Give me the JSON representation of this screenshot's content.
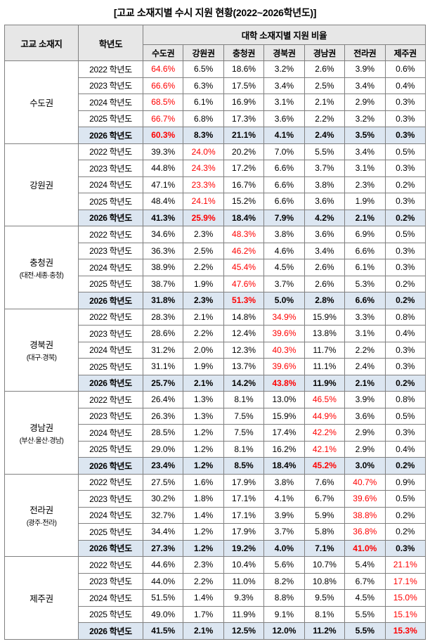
{
  "title": "[고교 소재지별 수시 지원 현황(2022~2026학년도)]",
  "colors": {
    "highlight_text": "#ff0000",
    "final_row_bg": "#dce6f1",
    "header_bg": "#e7e7e7",
    "grid_border": "#808080"
  },
  "chart_data": {
    "type": "table",
    "title": "[고교 소재지별 수시 지원 현황(2022~2026학년도)]",
    "unit": "%",
    "header": {
      "row_label_1": "고교 소재지",
      "row_label_2": "학년도",
      "group_label": "대학 소재지별 지원 비율",
      "columns": [
        "수도권",
        "강원권",
        "충청권",
        "경북권",
        "경남권",
        "전라권",
        "제주권"
      ]
    },
    "groups": [
      {
        "region": "수도권",
        "region_sub": "",
        "highlight_col": 0,
        "rows": [
          {
            "year": "2022 학년도",
            "final": false,
            "values": [
              "64.6%",
              "6.5%",
              "18.6%",
              "3.2%",
              "2.6%",
              "3.9%",
              "0.6%"
            ]
          },
          {
            "year": "2023 학년도",
            "final": false,
            "values": [
              "66.6%",
              "6.3%",
              "17.5%",
              "3.4%",
              "2.5%",
              "3.4%",
              "0.4%"
            ]
          },
          {
            "year": "2024 학년도",
            "final": false,
            "values": [
              "68.5%",
              "6.1%",
              "16.9%",
              "3.1%",
              "2.1%",
              "2.9%",
              "0.3%"
            ]
          },
          {
            "year": "2025 학년도",
            "final": false,
            "values": [
              "66.7%",
              "6.8%",
              "17.3%",
              "3.6%",
              "2.2%",
              "3.2%",
              "0.3%"
            ]
          },
          {
            "year": "2026 학년도",
            "final": true,
            "values": [
              "60.3%",
              "8.3%",
              "21.1%",
              "4.1%",
              "2.4%",
              "3.5%",
              "0.3%"
            ]
          }
        ]
      },
      {
        "region": "강원권",
        "region_sub": "",
        "highlight_col": 1,
        "rows": [
          {
            "year": "2022 학년도",
            "final": false,
            "values": [
              "39.3%",
              "24.0%",
              "20.2%",
              "7.0%",
              "5.5%",
              "3.4%",
              "0.5%"
            ]
          },
          {
            "year": "2023 학년도",
            "final": false,
            "values": [
              "44.8%",
              "24.3%",
              "17.2%",
              "6.6%",
              "3.7%",
              "3.1%",
              "0.3%"
            ]
          },
          {
            "year": "2024 학년도",
            "final": false,
            "values": [
              "47.1%",
              "23.3%",
              "16.7%",
              "6.6%",
              "3.8%",
              "2.3%",
              "0.2%"
            ]
          },
          {
            "year": "2025 학년도",
            "final": false,
            "values": [
              "48.4%",
              "24.1%",
              "15.2%",
              "6.6%",
              "3.6%",
              "1.9%",
              "0.3%"
            ]
          },
          {
            "year": "2026 학년도",
            "final": true,
            "values": [
              "41.3%",
              "25.9%",
              "18.4%",
              "7.9%",
              "4.2%",
              "2.1%",
              "0.2%"
            ]
          }
        ]
      },
      {
        "region": "충청권",
        "region_sub": "(대전·세종·충청)",
        "highlight_col": 2,
        "rows": [
          {
            "year": "2022 학년도",
            "final": false,
            "values": [
              "34.6%",
              "2.3%",
              "48.3%",
              "3.8%",
              "3.6%",
              "6.9%",
              "0.5%"
            ]
          },
          {
            "year": "2023 학년도",
            "final": false,
            "values": [
              "36.3%",
              "2.5%",
              "46.2%",
              "4.6%",
              "3.4%",
              "6.6%",
              "0.3%"
            ]
          },
          {
            "year": "2024 학년도",
            "final": false,
            "values": [
              "38.9%",
              "2.2%",
              "45.4%",
              "4.5%",
              "2.6%",
              "6.1%",
              "0.3%"
            ]
          },
          {
            "year": "2025 학년도",
            "final": false,
            "values": [
              "38.7%",
              "1.9%",
              "47.6%",
              "3.7%",
              "2.6%",
              "5.3%",
              "0.2%"
            ]
          },
          {
            "year": "2026 학년도",
            "final": true,
            "values": [
              "31.8%",
              "2.3%",
              "51.3%",
              "5.0%",
              "2.8%",
              "6.6%",
              "0.2%"
            ]
          }
        ]
      },
      {
        "region": "경북권",
        "region_sub": "(대구·경북)",
        "highlight_col": 3,
        "rows": [
          {
            "year": "2022 학년도",
            "final": false,
            "values": [
              "28.3%",
              "2.1%",
              "14.8%",
              "34.9%",
              "15.9%",
              "3.3%",
              "0.8%"
            ]
          },
          {
            "year": "2023 학년도",
            "final": false,
            "values": [
              "28.6%",
              "2.2%",
              "12.4%",
              "39.6%",
              "13.8%",
              "3.1%",
              "0.4%"
            ]
          },
          {
            "year": "2024 학년도",
            "final": false,
            "values": [
              "31.2%",
              "2.0%",
              "12.3%",
              "40.3%",
              "11.7%",
              "2.2%",
              "0.3%"
            ]
          },
          {
            "year": "2025 학년도",
            "final": false,
            "values": [
              "31.1%",
              "1.9%",
              "13.7%",
              "39.6%",
              "11.1%",
              "2.4%",
              "0.3%"
            ]
          },
          {
            "year": "2026 학년도",
            "final": true,
            "values": [
              "25.7%",
              "2.1%",
              "14.2%",
              "43.8%",
              "11.9%",
              "2.1%",
              "0.2%"
            ]
          }
        ]
      },
      {
        "region": "경남권",
        "region_sub": "(부산·울산·경남)",
        "highlight_col": 4,
        "rows": [
          {
            "year": "2022 학년도",
            "final": false,
            "values": [
              "26.4%",
              "1.3%",
              "8.1%",
              "13.0%",
              "46.5%",
              "3.9%",
              "0.8%"
            ]
          },
          {
            "year": "2023 학년도",
            "final": false,
            "values": [
              "26.3%",
              "1.3%",
              "7.5%",
              "15.9%",
              "44.9%",
              "3.6%",
              "0.5%"
            ]
          },
          {
            "year": "2024 학년도",
            "final": false,
            "values": [
              "28.5%",
              "1.2%",
              "7.5%",
              "17.4%",
              "42.2%",
              "2.9%",
              "0.3%"
            ]
          },
          {
            "year": "2025 학년도",
            "final": false,
            "values": [
              "29.0%",
              "1.2%",
              "8.1%",
              "16.2%",
              "42.1%",
              "2.9%",
              "0.4%"
            ]
          },
          {
            "year": "2026 학년도",
            "final": true,
            "values": [
              "23.4%",
              "1.2%",
              "8.5%",
              "18.4%",
              "45.2%",
              "3.0%",
              "0.2%"
            ]
          }
        ]
      },
      {
        "region": "전라권",
        "region_sub": "(광주·전라)",
        "highlight_col": 5,
        "rows": [
          {
            "year": "2022 학년도",
            "final": false,
            "values": [
              "27.5%",
              "1.6%",
              "17.9%",
              "3.8%",
              "7.6%",
              "40.7%",
              "0.9%"
            ]
          },
          {
            "year": "2023 학년도",
            "final": false,
            "values": [
              "30.2%",
              "1.8%",
              "17.1%",
              "4.1%",
              "6.7%",
              "39.6%",
              "0.5%"
            ]
          },
          {
            "year": "2024 학년도",
            "final": false,
            "values": [
              "32.7%",
              "1.4%",
              "17.1%",
              "3.9%",
              "5.9%",
              "38.8%",
              "0.2%"
            ]
          },
          {
            "year": "2025 학년도",
            "final": false,
            "values": [
              "34.4%",
              "1.2%",
              "17.9%",
              "3.7%",
              "5.8%",
              "36.8%",
              "0.2%"
            ]
          },
          {
            "year": "2026 학년도",
            "final": true,
            "values": [
              "27.3%",
              "1.2%",
              "19.2%",
              "4.0%",
              "7.1%",
              "41.0%",
              "0.3%"
            ]
          }
        ]
      },
      {
        "region": "제주권",
        "region_sub": "",
        "highlight_col": 6,
        "rows": [
          {
            "year": "2022 학년도",
            "final": false,
            "values": [
              "44.6%",
              "2.3%",
              "10.4%",
              "5.6%",
              "10.7%",
              "5.4%",
              "21.1%"
            ]
          },
          {
            "year": "2023 학년도",
            "final": false,
            "values": [
              "44.0%",
              "2.2%",
              "11.0%",
              "8.2%",
              "10.8%",
              "6.7%",
              "17.1%"
            ]
          },
          {
            "year": "2024 학년도",
            "final": false,
            "values": [
              "51.5%",
              "1.4%",
              "9.3%",
              "8.8%",
              "9.5%",
              "4.5%",
              "15.0%"
            ]
          },
          {
            "year": "2025 학년도",
            "final": false,
            "values": [
              "49.0%",
              "1.7%",
              "11.9%",
              "9.1%",
              "8.1%",
              "5.5%",
              "15.1%"
            ]
          },
          {
            "year": "2026 학년도",
            "final": true,
            "values": [
              "41.5%",
              "2.1%",
              "12.5%",
              "12.0%",
              "11.2%",
              "5.5%",
              "15.3%"
            ]
          }
        ]
      }
    ]
  }
}
